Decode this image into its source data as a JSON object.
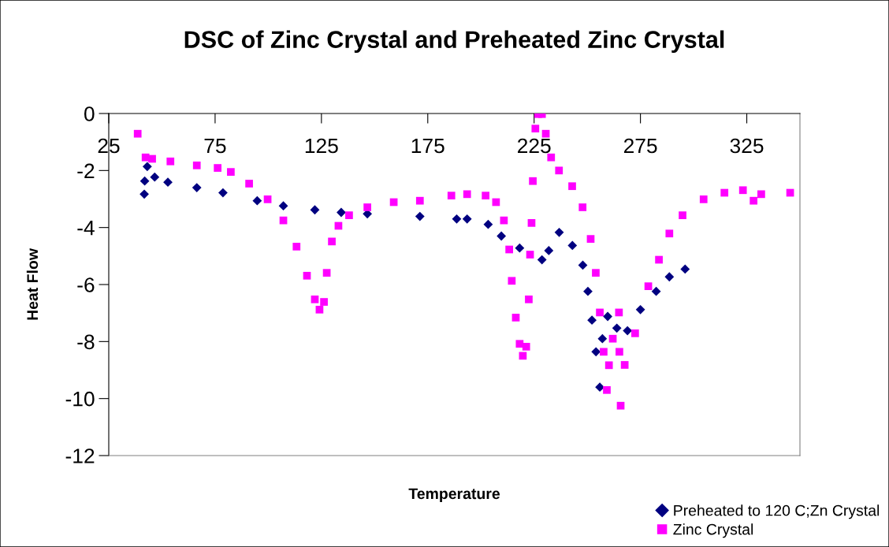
{
  "chart_data": {
    "type": "scatter",
    "title": "DSC of Zinc Crystal and Preheated Zinc Crystal",
    "xlabel": "Temperature",
    "ylabel": "Heat Flow",
    "xlim": [
      25,
      350
    ],
    "xticks": [
      25,
      75,
      125,
      175,
      225,
      275,
      325
    ],
    "ylim": [
      -12,
      0
    ],
    "yticks": [
      -12,
      -10,
      -8,
      -6,
      -4,
      -2,
      0
    ],
    "grid": false,
    "legend": "bottom right",
    "series": [
      {
        "name": "Preheated to 120 C;Zn Crystal",
        "color": "#000080",
        "marker": "diamond",
        "x": [
          41.7,
          41.9,
          43.1,
          46.6,
          52.8,
          66.4,
          78.7,
          94.8,
          107.1,
          121.9,
          134.3,
          146.6,
          171.3,
          188.6,
          193.5,
          203.4,
          209.6,
          218.2,
          228.7,
          231.9,
          236.8,
          243,
          247.9,
          250.3,
          252.2,
          254.1,
          255.9,
          257.1,
          259.6,
          263.9,
          268.9,
          275,
          282.4,
          288.6,
          296
        ],
        "values": [
          -2.83,
          -2.37,
          -1.86,
          -2.23,
          -2.41,
          -2.6,
          -2.78,
          -3.06,
          -3.24,
          -3.38,
          -3.47,
          -3.52,
          -3.61,
          -3.7,
          -3.7,
          -3.89,
          -4.3,
          -4.72,
          -5.13,
          -4.81,
          -4.17,
          -4.63,
          -5.32,
          -6.24,
          -7.25,
          -8.36,
          -9.6,
          -7.9,
          -7.12,
          -7.53,
          -7.62,
          -6.88,
          -6.24,
          -5.73,
          -5.46
        ]
      },
      {
        "name": "Zinc Crystal",
        "color": "#ff00ff",
        "marker": "square",
        "x": [
          38.6,
          42.3,
          45.4,
          54,
          66.4,
          76.2,
          82.4,
          91,
          99.7,
          107.1,
          113.3,
          118.2,
          121.9,
          124.1,
          126.2,
          127.5,
          129.9,
          133,
          138,
          146.6,
          159,
          171.3,
          186.1,
          193.5,
          202.2,
          207.1,
          210.8,
          213.3,
          214.5,
          216.4,
          218.2,
          219.7,
          221.3,
          222.5,
          223.1,
          223.8,
          224.4,
          225.6,
          226.9,
          228.7,
          230.5,
          233,
          236.7,
          242.9,
          247.8,
          251.6,
          254,
          255.9,
          257.7,
          259.2,
          260.2,
          262,
          264.9,
          265.1,
          265.7,
          267.6,
          272.5,
          278.7,
          283.7,
          288.6,
          294.8,
          304.7,
          314.5,
          323.2,
          328.2,
          331.8,
          345.4
        ],
        "values": [
          -0.71,
          -1.54,
          -1.59,
          -1.68,
          -1.82,
          -1.91,
          -2.05,
          -2.46,
          -3.01,
          -3.75,
          -4.67,
          -5.69,
          -6.52,
          -6.88,
          -6.61,
          -5.59,
          -4.49,
          -3.94,
          -3.57,
          -3.29,
          -3.11,
          -3.06,
          -2.88,
          -2.83,
          -2.88,
          -3.11,
          -3.75,
          -4.77,
          -5.87,
          -7.16,
          -8.08,
          -8.5,
          -8.18,
          -6.52,
          -4.95,
          -3.84,
          -2.37,
          -0.53,
          -0.02,
          -0.02,
          -0.71,
          -1.54,
          -2.0,
          -2.55,
          -3.29,
          -4.4,
          -5.59,
          -6.98,
          -8.36,
          -9.7,
          -8.83,
          -7.9,
          -6.98,
          -8.36,
          -10.25,
          -8.82,
          -7.71,
          -6.06,
          -5.13,
          -4.21,
          -3.57,
          -3.01,
          -2.78,
          -2.69,
          -3.06,
          -2.83,
          -2.78
        ]
      }
    ]
  }
}
